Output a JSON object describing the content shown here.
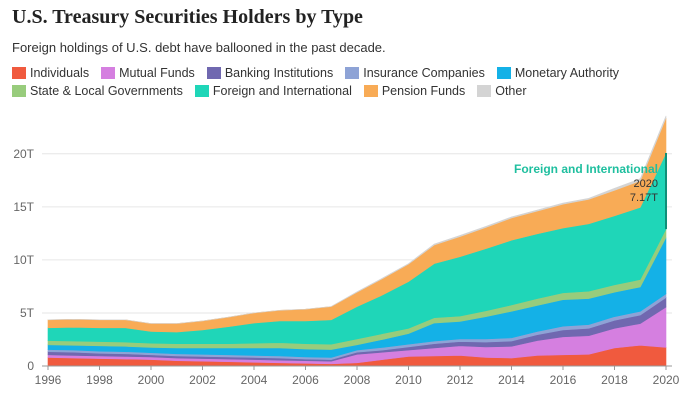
{
  "chart_data": {
    "type": "area",
    "stacked": true,
    "title": "U.S. Treasury Securities Holders by Type",
    "subtitle": "Foreign holdings of U.S. debt have ballooned in the past decade.",
    "x": [
      1996,
      1997,
      1998,
      1999,
      2000,
      2001,
      2002,
      2003,
      2004,
      2005,
      2006,
      2007,
      2008,
      2009,
      2010,
      2011,
      2012,
      2013,
      2014,
      2015,
      2016,
      2017,
      2018,
      2019,
      2020
    ],
    "x_ticks": [
      1996,
      1998,
      2000,
      2002,
      2004,
      2006,
      2008,
      2010,
      2012,
      2014,
      2016,
      2018,
      2020
    ],
    "y_ticks": [
      0,
      5,
      10,
      15,
      20
    ],
    "y_tick_labels": [
      "0",
      "5T",
      "10T",
      "15T",
      "20T"
    ],
    "ylim": [
      0,
      24.5
    ],
    "xlim": [
      1996,
      2020
    ],
    "grid": true,
    "legend_position": "top",
    "series": [
      {
        "name": "Individuals",
        "color": "#f05a3e",
        "values": [
          0.8,
          0.75,
          0.7,
          0.65,
          0.6,
          0.5,
          0.45,
          0.4,
          0.35,
          0.3,
          0.25,
          0.2,
          0.3,
          0.6,
          0.9,
          0.95,
          1.0,
          0.8,
          0.75,
          1.0,
          1.05,
          1.1,
          1.7,
          1.95,
          1.75
        ]
      },
      {
        "name": "Mutual Funds",
        "color": "#d57fe0",
        "values": [
          0.25,
          0.25,
          0.25,
          0.25,
          0.25,
          0.25,
          0.25,
          0.25,
          0.25,
          0.25,
          0.25,
          0.25,
          0.8,
          0.7,
          0.6,
          0.75,
          0.9,
          1.0,
          1.1,
          1.4,
          1.7,
          1.75,
          1.85,
          2.05,
          3.8
        ]
      },
      {
        "name": "Banking Institutions",
        "color": "#7068b0",
        "values": [
          0.3,
          0.3,
          0.25,
          0.25,
          0.2,
          0.2,
          0.2,
          0.2,
          0.2,
          0.2,
          0.15,
          0.15,
          0.2,
          0.2,
          0.3,
          0.4,
          0.4,
          0.45,
          0.5,
          0.55,
          0.65,
          0.7,
          0.75,
          0.8,
          0.9
        ]
      },
      {
        "name": "Insurance Companies",
        "color": "#8ea3d6",
        "values": [
          0.2,
          0.2,
          0.2,
          0.2,
          0.2,
          0.2,
          0.2,
          0.2,
          0.2,
          0.2,
          0.2,
          0.2,
          0.2,
          0.25,
          0.25,
          0.25,
          0.25,
          0.3,
          0.3,
          0.3,
          0.35,
          0.35,
          0.35,
          0.35,
          0.35
        ]
      },
      {
        "name": "Monetary Authority",
        "color": "#14b1e7",
        "values": [
          0.45,
          0.45,
          0.5,
          0.5,
          0.5,
          0.55,
          0.6,
          0.65,
          0.7,
          0.75,
          0.75,
          0.75,
          0.5,
          0.75,
          1.0,
          1.7,
          1.65,
          2.1,
          2.5,
          2.45,
          2.5,
          2.45,
          2.3,
          2.3,
          5.3
        ]
      },
      {
        "name": "State & Local Governments",
        "color": "#98cc7c",
        "values": [
          0.4,
          0.4,
          0.4,
          0.4,
          0.4,
          0.4,
          0.4,
          0.4,
          0.45,
          0.5,
          0.5,
          0.5,
          0.55,
          0.55,
          0.5,
          0.5,
          0.5,
          0.55,
          0.6,
          0.65,
          0.65,
          0.7,
          0.7,
          0.7,
          0.8
        ]
      },
      {
        "name": "Foreign and International",
        "color": "#1fd6b8",
        "values": [
          1.2,
          1.3,
          1.3,
          1.35,
          1.1,
          1.1,
          1.3,
          1.6,
          1.9,
          2.05,
          2.15,
          2.3,
          3.05,
          3.65,
          4.4,
          5.1,
          5.6,
          5.85,
          6.1,
          6.1,
          6.1,
          6.35,
          6.5,
          6.8,
          7.17
        ]
      },
      {
        "name": "Pension Funds",
        "color": "#f8ab56",
        "values": [
          0.75,
          0.75,
          0.75,
          0.75,
          0.75,
          0.8,
          0.85,
          0.9,
          0.95,
          1.0,
          1.1,
          1.25,
          1.35,
          1.55,
          1.65,
          1.75,
          1.9,
          2.0,
          2.1,
          2.15,
          2.25,
          2.3,
          2.4,
          2.5,
          3.3
        ]
      },
      {
        "name": "Other",
        "color": "#d4d4d4",
        "values": [
          0.0,
          0.0,
          0.0,
          0.0,
          0.0,
          0.0,
          0.0,
          0.0,
          0.0,
          0.0,
          0.0,
          0.0,
          0.05,
          0.05,
          0.05,
          0.1,
          0.1,
          0.1,
          0.1,
          0.1,
          0.1,
          0.1,
          0.2,
          0.2,
          0.2
        ]
      }
    ],
    "annotation": {
      "label": "Foreign and International",
      "year_label": "2020",
      "value_label": "7.17T",
      "series": "Foreign and International",
      "x": 2020
    }
  }
}
